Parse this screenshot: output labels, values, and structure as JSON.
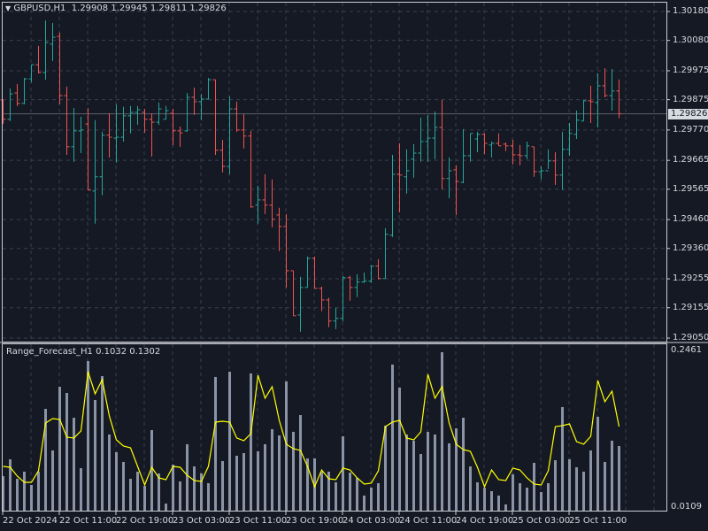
{
  "header": {
    "symbol": "GBPUSD,H1",
    "ohlc_text": "1.29908 1.29945 1.29811 1.29826"
  },
  "indicator": {
    "label": "Range_Forecast_H1 0.1032 0.1302",
    "axis_max": "0.2461",
    "axis_min": "0.0109"
  },
  "colors": {
    "background": "#151924",
    "bull": "#26a69a",
    "bear": "#ef5350",
    "histogram": "#8a94a6",
    "forecast_line": "#ffff00",
    "grid": "#3a4050"
  },
  "chart_data": [
    {
      "type": "ohlc",
      "timeframe": "H1",
      "price_axis_labels": [
        "1.30180",
        "1.30080",
        "1.29975",
        "1.29875",
        "1.29770",
        "1.29665",
        "1.29565",
        "1.29460",
        "1.29360",
        "1.29255",
        "1.29155",
        "1.29050"
      ],
      "current_price": "1.29826",
      "ylim": [
        1.2905,
        1.3018
      ],
      "time_labels": [
        "22 Oct 2024",
        "22 Oct 11:00",
        "22 Oct 19:00",
        "23 Oct 03:00",
        "23 Oct 11:00",
        "23 Oct 19:00",
        "24 Oct 03:00",
        "24 Oct 11:00",
        "24 Oct 19:00",
        "25 Oct 03:00",
        "25 Oct 11:00"
      ],
      "grid": true,
      "bars_ohlc": [
        [
          1.29874,
          1.29874,
          1.29791,
          1.29807
        ],
        [
          1.29807,
          1.29914,
          1.29801,
          1.29895
        ],
        [
          1.29898,
          1.29929,
          1.29853,
          1.29862
        ],
        [
          1.29862,
          1.2995,
          1.29859,
          1.29947
        ],
        [
          1.29947,
          1.29996,
          1.29935,
          1.29996
        ],
        [
          1.29996,
          1.30061,
          1.29966,
          1.29969
        ],
        [
          1.29969,
          1.30149,
          1.29944,
          1.30073
        ],
        [
          1.30067,
          1.3014,
          1.30009,
          1.30091
        ],
        [
          1.30094,
          1.30107,
          1.29859,
          1.29889
        ],
        [
          1.29889,
          1.2992,
          1.29684,
          1.29712
        ],
        [
          1.29712,
          1.29846,
          1.2966,
          1.29767
        ],
        [
          1.29767,
          1.29816,
          1.2969,
          1.2977
        ],
        [
          1.29791,
          1.29846,
          1.29562,
          1.29562
        ],
        [
          1.29559,
          1.29804,
          1.29446,
          1.29608
        ],
        [
          1.29608,
          1.29764,
          1.29544,
          1.29752
        ],
        [
          1.29752,
          1.29828,
          1.29675,
          1.29745
        ],
        [
          1.29742,
          1.29859,
          1.29657,
          1.29745
        ],
        [
          1.29745,
          1.2985,
          1.2973,
          1.29819
        ],
        [
          1.29819,
          1.29853,
          1.29758,
          1.29831
        ],
        [
          1.29831,
          1.29853,
          1.29788,
          1.2984
        ],
        [
          1.29831,
          1.29843,
          1.29761,
          1.29807
        ],
        [
          1.29807,
          1.29828,
          1.29678,
          1.29797
        ],
        [
          1.29797,
          1.29865,
          1.29788,
          1.29843
        ],
        [
          1.29807,
          1.29853,
          1.29807,
          1.29837
        ],
        [
          1.29828,
          1.29843,
          1.29718,
          1.29767
        ],
        [
          1.29767,
          1.29782,
          1.29712,
          1.2976
        ],
        [
          1.29767,
          1.29898,
          1.29764,
          1.29883
        ],
        [
          1.29883,
          1.29917,
          1.29822,
          1.29868
        ],
        [
          1.29868,
          1.29895,
          1.29804,
          1.29877
        ],
        [
          1.29877,
          1.2995,
          1.29877,
          1.29944
        ],
        [
          1.29944,
          1.29944,
          1.29684,
          1.297
        ],
        [
          1.297,
          1.29736,
          1.29623,
          1.29644
        ],
        [
          1.29644,
          1.29886,
          1.29617,
          1.29843
        ],
        [
          1.29843,
          1.29868,
          1.29764,
          1.2977
        ],
        [
          1.2977,
          1.29825,
          1.29706,
          1.29749
        ],
        [
          1.29749,
          1.29767,
          1.29501,
          1.29504
        ],
        [
          1.2951,
          1.29577,
          1.29446,
          1.29528
        ],
        [
          1.29528,
          1.29617,
          1.29479,
          1.2951
        ],
        [
          1.2951,
          1.29599,
          1.29433,
          1.29461
        ],
        [
          1.29476,
          1.29501,
          1.29351,
          1.29436
        ],
        [
          1.29436,
          1.29479,
          1.29225,
          1.29283
        ],
        [
          1.29283,
          1.29283,
          1.29127,
          1.29127
        ],
        [
          1.2913,
          1.29262,
          1.29072,
          1.29225
        ],
        [
          1.29225,
          1.29332,
          1.29225,
          1.29326
        ],
        [
          1.29326,
          1.29332,
          1.29222,
          1.29222
        ],
        [
          1.29222,
          1.29228,
          1.29143,
          1.29182
        ],
        [
          1.29182,
          1.29189,
          1.29088,
          1.29109
        ],
        [
          1.29109,
          1.29155,
          1.29081,
          1.29118
        ],
        [
          1.29118,
          1.29265,
          1.29109,
          1.29259
        ],
        [
          1.29259,
          1.29265,
          1.29179,
          1.29225
        ],
        [
          1.29225,
          1.29271,
          1.29192,
          1.29244
        ],
        [
          1.29244,
          1.29277,
          1.29241,
          1.29247
        ],
        [
          1.29247,
          1.29302,
          1.29241,
          1.29299
        ],
        [
          1.29299,
          1.29323,
          1.29253,
          1.29256
        ],
        [
          1.29256,
          1.2943,
          1.29256,
          1.29409
        ],
        [
          1.29406,
          1.29684,
          1.294,
          1.29617
        ],
        [
          1.29617,
          1.29724,
          1.29485,
          1.29614
        ],
        [
          1.29608,
          1.29703,
          1.2955,
          1.29629
        ],
        [
          1.29669,
          1.29721,
          1.29605,
          1.2969
        ],
        [
          1.2969,
          1.29813,
          1.2966,
          1.2973
        ],
        [
          1.2973,
          1.29822,
          1.2966,
          1.29742
        ],
        [
          1.29742,
          1.29834,
          1.29669,
          1.29779
        ],
        [
          1.29779,
          1.29874,
          1.29565,
          1.29602
        ],
        [
          1.29602,
          1.29675,
          1.29534,
          1.29629
        ],
        [
          1.29632,
          1.29648,
          1.29476,
          1.29592
        ],
        [
          1.29589,
          1.29773,
          1.29586,
          1.29681
        ],
        [
          1.29681,
          1.29758,
          1.2966,
          1.29758
        ],
        [
          1.29739,
          1.29764,
          1.29693,
          1.29755
        ],
        [
          1.29755,
          1.29758,
          1.29687,
          1.29724
        ],
        [
          1.29718,
          1.2973,
          1.29675,
          1.29724
        ],
        [
          1.29724,
          1.29758,
          1.29715,
          1.29715
        ],
        [
          1.29721,
          1.29727,
          1.29697,
          1.29715
        ],
        [
          1.29715,
          1.29736,
          1.29651,
          1.29684
        ],
        [
          1.29684,
          1.29718,
          1.29648,
          1.29681
        ],
        [
          1.29681,
          1.2973,
          1.29669,
          1.29715
        ],
        [
          1.29712,
          1.29712,
          1.29608,
          1.29626
        ],
        [
          1.29626,
          1.29644,
          1.29599,
          1.29629
        ],
        [
          1.29629,
          1.29703,
          1.29635,
          1.29663
        ],
        [
          1.29663,
          1.29693,
          1.2958,
          1.29614
        ],
        [
          1.29614,
          1.29764,
          1.29562,
          1.29703
        ],
        [
          1.29703,
          1.29794,
          1.29681,
          1.29758
        ],
        [
          1.29755,
          1.29837,
          1.29739,
          1.29804
        ],
        [
          1.29801,
          1.29874,
          1.29801,
          1.29871
        ],
        [
          1.29871,
          1.29923,
          1.29794,
          1.29868
        ],
        [
          1.29865,
          1.29966,
          1.29779,
          1.29923
        ],
        [
          1.29923,
          1.29984,
          1.29883,
          1.29889
        ],
        [
          1.29889,
          1.29981,
          1.29837,
          1.29905
        ],
        [
          1.29905,
          1.29945,
          1.29811,
          1.29826
        ]
      ]
    },
    {
      "type": "bar+line",
      "ylim": [
        0.0109,
        0.2461
      ],
      "histogram": [
        0.0574,
        0.0827,
        0.0534,
        0.0641,
        0.0441,
        0.0641,
        0.1584,
        0.096,
        0.1916,
        0.1823,
        0.1451,
        0.0694,
        0.2302,
        0.1717,
        0.2076,
        0.1199,
        0.0933,
        0.0787,
        0.0534,
        0.0641,
        0.0428,
        0.1265,
        0.0614,
        0.0162,
        0.0747,
        0.0494,
        0.1053,
        0.072,
        0.0614,
        0.0468,
        0.2063,
        0.08,
        0.2142,
        0.088,
        0.092,
        0.2116,
        0.0946,
        0.1053,
        0.1279,
        0.1185,
        0.1996,
        0.1239,
        0.1491,
        0.084,
        0.084,
        0.0641,
        0.0641,
        0.0481,
        0.1172,
        0.0627,
        0.0548,
        0.0282,
        0.0401,
        0.0468,
        0.1332,
        0.2249,
        0.1903,
        0.1199,
        0.1106,
        0.0906,
        0.1239,
        0.1199,
        0.2435,
        0.1066,
        0.1292,
        0.1451,
        0.072,
        0.0481,
        0.0401,
        0.0348,
        0.0282,
        0.0149,
        0.0601,
        0.0468,
        0.0401,
        0.0774,
        0.0335,
        0.0468,
        0.0813,
        0.1611,
        0.0827,
        0.0707,
        0.0641,
        0.096,
        0.1465,
        0.0787,
        0.1106,
        0.1026
      ],
      "forecast": [
        0.072,
        0.0707,
        0.0574,
        0.0481,
        0.0481,
        0.0654,
        0.1372,
        0.1438,
        0.1425,
        0.1159,
        0.1146,
        0.1252,
        0.2142,
        0.181,
        0.2023,
        0.1478,
        0.1119,
        0.1026,
        0.0999,
        0.072,
        0.0441,
        0.0707,
        0.0548,
        0.0521,
        0.072,
        0.0707,
        0.0587,
        0.0508,
        0.0494,
        0.072,
        0.1385,
        0.1398,
        0.1385,
        0.1146,
        0.1106,
        0.1212,
        0.2089,
        0.1744,
        0.1916,
        0.1411,
        0.1053,
        0.0986,
        0.096,
        0.072,
        0.0415,
        0.0667,
        0.0534,
        0.0521,
        0.0694,
        0.0667,
        0.0548,
        0.0455,
        0.0468,
        0.0654,
        0.1318,
        0.1385,
        0.1411,
        0.1146,
        0.1119,
        0.1239,
        0.2103,
        0.1744,
        0.1916,
        0.1372,
        0.1053,
        0.0973,
        0.0946,
        0.0707,
        0.0415,
        0.0667,
        0.0521,
        0.0508,
        0.0694,
        0.0667,
        0.0548,
        0.0455,
        0.0441,
        0.0654,
        0.1318,
        0.1332,
        0.1358,
        0.1092,
        0.1053,
        0.1172,
        0.201,
        0.1691,
        0.185,
        0.1318
      ]
    }
  ]
}
